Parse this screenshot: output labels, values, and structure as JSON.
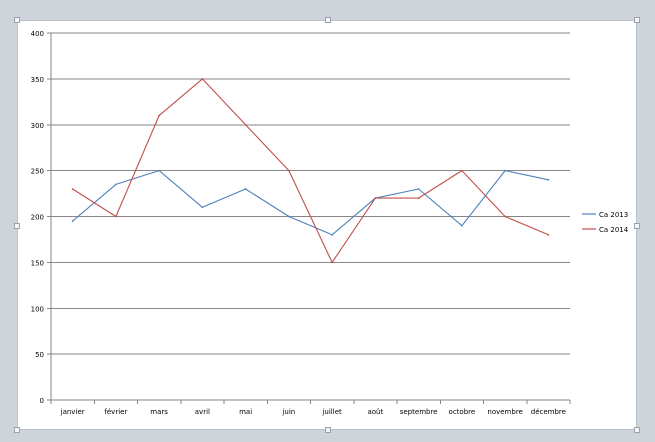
{
  "chart_data": {
    "type": "line",
    "categories": [
      "janvier",
      "février",
      "mars",
      "avril",
      "mai",
      "juin",
      "juillet",
      "août",
      "septembre",
      "octobre",
      "novembre",
      "décembre"
    ],
    "series": [
      {
        "name": "Ca 2013",
        "values": [
          195,
          235,
          250,
          210,
          230,
          200,
          180,
          220,
          230,
          190,
          250,
          240
        ],
        "color": "#4f81bd"
      },
      {
        "name": "Ca 2014",
        "values": [
          230,
          200,
          310,
          350,
          300,
          250,
          150,
          220,
          220,
          250,
          200,
          180
        ],
        "color": "#c0504d"
      }
    ],
    "ylim": [
      0,
      400
    ],
    "yticks": [
      "0",
      "50",
      "100",
      "150",
      "200",
      "250",
      "300",
      "350",
      "400"
    ],
    "grid": true,
    "legend_position": "right"
  }
}
